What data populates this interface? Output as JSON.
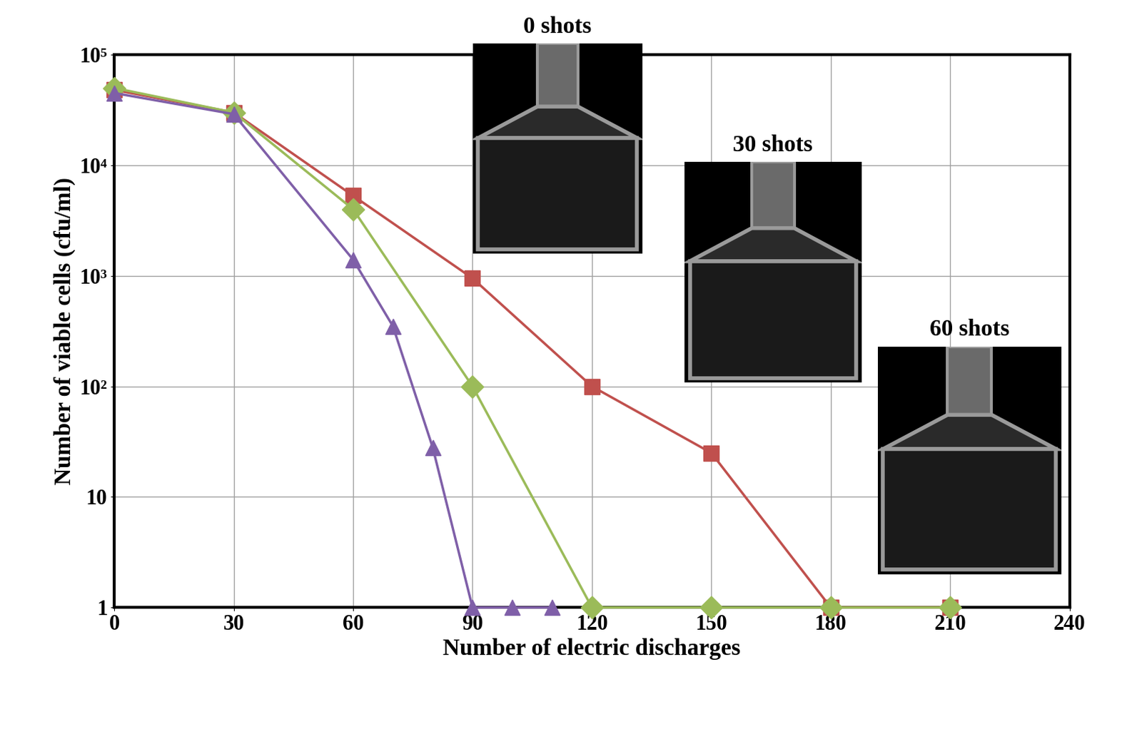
{
  "chart_data": {
    "type": "line",
    "x_label": "Number of electric discharges",
    "y_label": "Number of viable cells (cfu/ml)",
    "log": "y",
    "grid": true,
    "xlim": [
      0,
      240
    ],
    "xticks": [
      0,
      30,
      60,
      90,
      120,
      150,
      180,
      210,
      240
    ],
    "ylim": [
      1,
      100000
    ],
    "yticks": [
      1,
      10,
      {
        "value": 100,
        "label": "10²"
      },
      {
        "value": 1000,
        "label": "10³"
      },
      {
        "value": 10000,
        "label": "10⁴"
      },
      {
        "value": 100000,
        "label": "10⁵"
      }
    ],
    "series": [
      {
        "color": "#c0504d",
        "marker": "square",
        "x": [
          0,
          30,
          60,
          90,
          120,
          150,
          180,
          210
        ],
        "values": [
          48000,
          30000,
          5300,
          950,
          100,
          25,
          1,
          1
        ]
      },
      {
        "color": "#9bbb59",
        "marker": "diamond",
        "x": [
          0,
          30,
          60,
          90,
          120,
          150,
          180,
          210
        ],
        "values": [
          50000,
          30000,
          4000,
          100,
          1,
          1,
          1,
          1
        ]
      },
      {
        "color": "#7f5fa8",
        "marker": "triangle",
        "x": [
          0,
          30,
          60,
          70,
          80,
          90,
          100,
          110
        ],
        "values": [
          45000,
          29000,
          1400,
          350,
          28,
          1,
          1,
          1
        ]
      }
    ],
    "annotations": [
      {
        "text": "0 shots"
      },
      {
        "text": "30 shots"
      },
      {
        "text": "60 shots"
      }
    ]
  }
}
